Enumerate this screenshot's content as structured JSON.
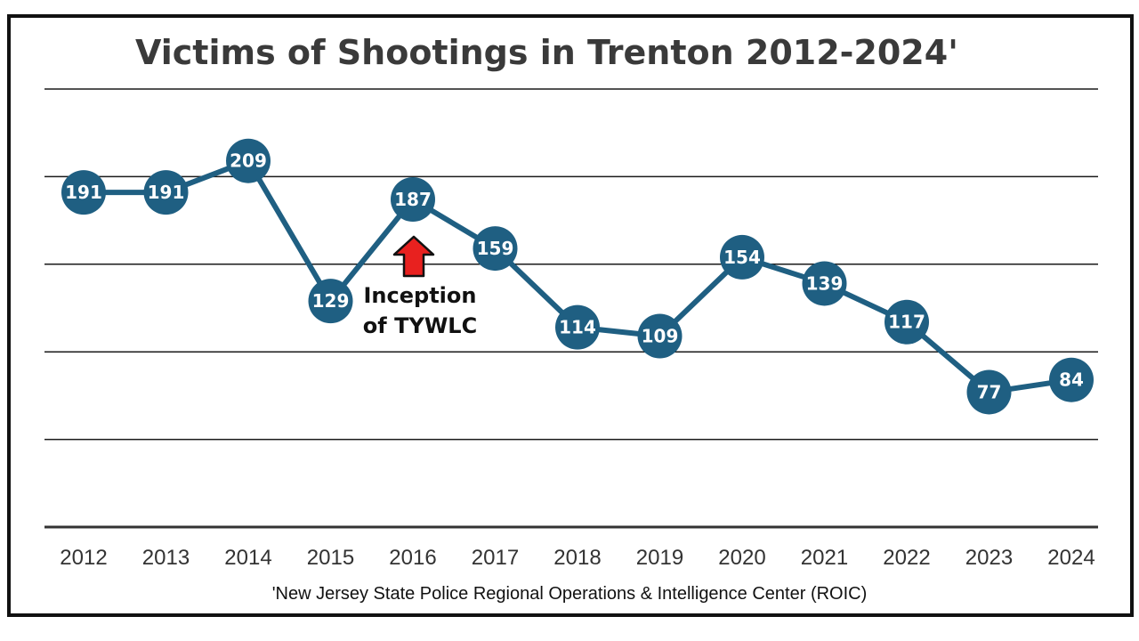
{
  "chart_data": {
    "type": "line",
    "title": "Victims of Shootings in Trenton 2012-2024'",
    "xlabel": "",
    "ylabel": "",
    "categories": [
      "2012",
      "2013",
      "2014",
      "2015",
      "2016",
      "2017",
      "2018",
      "2019",
      "2020",
      "2021",
      "2022",
      "2023",
      "2024"
    ],
    "series": [
      {
        "name": "Victims of Shootings",
        "values": [
          191,
          191,
          209,
          129,
          187,
          159,
          114,
          109,
          154,
          139,
          117,
          77,
          84
        ]
      }
    ],
    "ylim": [
      0,
      250
    ],
    "gridline_values": [
      50,
      100,
      150,
      200,
      250
    ],
    "annotation": {
      "lines": [
        "Inception",
        "of TYWLC"
      ],
      "category": "2016"
    },
    "source": "'New Jersey State Police Regional Operations & Intelligence Center (ROIC)",
    "colors": {
      "line": "#1f5f82",
      "marker": "#1f5f82",
      "arrow": "#e8211f",
      "grid": "#1a1a1a"
    }
  }
}
